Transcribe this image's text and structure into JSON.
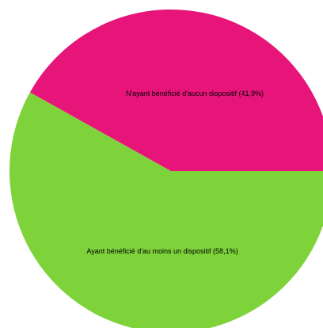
{
  "chart_data": {
    "type": "pie",
    "slices": [
      {
        "label": "N'ayant bénéficié d'aucun dispositif (41,9%)",
        "value": 41.9,
        "color": "#E7157A"
      },
      {
        "label": "Ayant bénéficié d'au moins un dispositif (58,1%)",
        "value": 58.1,
        "color": "#7ED33B"
      }
    ],
    "title": "",
    "legend": "none",
    "start": "3 o'clock",
    "direction": "counterclockwise"
  }
}
